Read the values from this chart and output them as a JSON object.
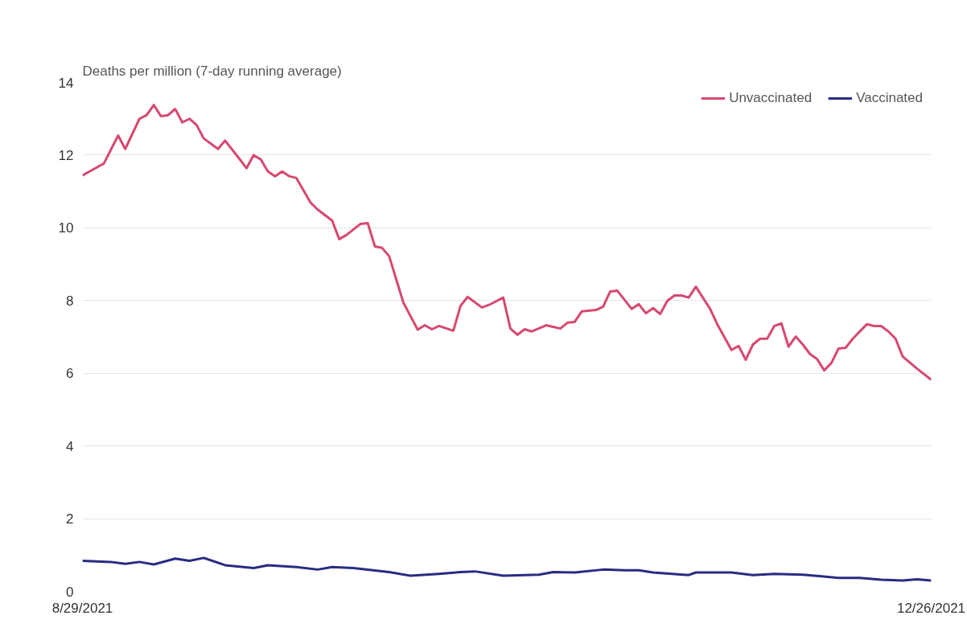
{
  "chart_data": {
    "type": "line",
    "title": "Deaths per million (7-day running average)",
    "xlim": [
      "2021-08-29",
      "2021-12-26"
    ],
    "xticks": [
      {
        "value": "2021-08-29",
        "label": "8/29/2021"
      },
      {
        "value": "2021-12-26",
        "label": "12/26/2021"
      }
    ],
    "ylim": [
      0,
      14
    ],
    "yticks": [
      0,
      2,
      4,
      6,
      8,
      10,
      12,
      14
    ],
    "grid": "y",
    "legend": "top right",
    "marker": "none",
    "line_style": "solid",
    "series": [
      {
        "name": "Unvaccinated",
        "color": "#d6496f",
        "x": [
          "2021-08-29",
          "2021-08-31",
          "2021-09-01",
          "2021-09-03",
          "2021-09-04",
          "2021-09-06",
          "2021-09-07",
          "2021-09-08",
          "2021-09-09",
          "2021-09-10",
          "2021-09-11",
          "2021-09-12",
          "2021-09-13",
          "2021-09-14",
          "2021-09-15",
          "2021-09-17",
          "2021-09-18",
          "2021-09-20",
          "2021-09-21",
          "2021-09-22",
          "2021-09-23",
          "2021-09-24",
          "2021-09-25",
          "2021-09-26",
          "2021-09-27",
          "2021-09-28",
          "2021-09-30",
          "2021-10-01",
          "2021-10-03",
          "2021-10-04",
          "2021-10-05",
          "2021-10-07",
          "2021-10-08",
          "2021-10-09",
          "2021-10-10",
          "2021-10-11",
          "2021-10-13",
          "2021-10-15",
          "2021-10-16",
          "2021-10-17",
          "2021-10-18",
          "2021-10-20",
          "2021-10-21",
          "2021-10-22",
          "2021-10-24",
          "2021-10-25",
          "2021-10-27",
          "2021-10-28",
          "2021-10-29",
          "2021-10-30",
          "2021-10-31",
          "2021-11-02",
          "2021-11-04",
          "2021-11-05",
          "2021-11-06",
          "2021-11-07",
          "2021-11-09",
          "2021-11-10",
          "2021-11-11",
          "2021-11-12",
          "2021-11-14",
          "2021-11-15",
          "2021-11-16",
          "2021-11-17",
          "2021-11-18",
          "2021-11-19",
          "2021-11-20",
          "2021-11-21",
          "2021-11-22",
          "2021-11-23",
          "2021-11-25",
          "2021-11-26",
          "2021-11-28",
          "2021-11-29",
          "2021-11-30",
          "2021-12-01",
          "2021-12-02",
          "2021-12-03",
          "2021-12-04",
          "2021-12-05",
          "2021-12-06",
          "2021-12-07",
          "2021-12-08",
          "2021-12-09",
          "2021-12-10",
          "2021-12-11",
          "2021-12-12",
          "2021-12-13",
          "2021-12-14",
          "2021-12-15",
          "2021-12-17",
          "2021-12-18",
          "2021-12-19",
          "2021-12-20",
          "2021-12-21",
          "2021-12-22",
          "2021-12-24",
          "2021-12-26"
        ],
        "values": [
          11.44,
          11.66,
          11.77,
          12.54,
          12.17,
          13.0,
          13.1,
          13.38,
          13.07,
          13.1,
          13.27,
          12.9,
          13.0,
          12.83,
          12.46,
          12.17,
          12.4,
          11.9,
          11.64,
          12.0,
          11.88,
          11.55,
          11.42,
          11.55,
          11.42,
          11.37,
          10.69,
          10.5,
          10.2,
          9.69,
          9.8,
          10.11,
          10.13,
          9.49,
          9.45,
          9.22,
          7.94,
          7.2,
          7.32,
          7.21,
          7.3,
          7.17,
          7.85,
          8.1,
          7.81,
          7.88,
          8.08,
          7.23,
          7.06,
          7.21,
          7.15,
          7.32,
          7.23,
          7.39,
          7.41,
          7.7,
          7.74,
          7.83,
          8.25,
          8.27,
          7.77,
          7.9,
          7.65,
          7.79,
          7.63,
          7.99,
          8.14,
          8.14,
          8.08,
          8.38,
          7.77,
          7.35,
          6.64,
          6.75,
          6.37,
          6.79,
          6.95,
          6.95,
          7.3,
          7.37,
          6.73,
          7.01,
          6.79,
          6.53,
          6.39,
          6.08,
          6.28,
          6.68,
          6.7,
          6.95,
          7.35,
          7.3,
          7.3,
          7.15,
          6.95,
          6.46,
          6.13,
          5.82
        ]
      },
      {
        "name": "Vaccinated",
        "color": "#272c82",
        "x": [
          "2021-08-29",
          "2021-09-02",
          "2021-09-04",
          "2021-09-06",
          "2021-09-08",
          "2021-09-11",
          "2021-09-13",
          "2021-09-15",
          "2021-09-18",
          "2021-09-22",
          "2021-09-24",
          "2021-09-28",
          "2021-10-01",
          "2021-10-03",
          "2021-10-06",
          "2021-10-11",
          "2021-10-14",
          "2021-10-18",
          "2021-10-21",
          "2021-10-23",
          "2021-10-27",
          "2021-11-01",
          "2021-11-03",
          "2021-11-06",
          "2021-11-10",
          "2021-11-13",
          "2021-11-15",
          "2021-11-17",
          "2021-11-22",
          "2021-11-23",
          "2021-11-26",
          "2021-11-28",
          "2021-12-01",
          "2021-12-04",
          "2021-12-08",
          "2021-12-13",
          "2021-12-16",
          "2021-12-19",
          "2021-12-22",
          "2021-12-24",
          "2021-12-26"
        ],
        "values": [
          0.84,
          0.81,
          0.76,
          0.81,
          0.74,
          0.9,
          0.84,
          0.92,
          0.72,
          0.64,
          0.72,
          0.67,
          0.6,
          0.67,
          0.64,
          0.53,
          0.43,
          0.48,
          0.53,
          0.55,
          0.43,
          0.46,
          0.53,
          0.52,
          0.6,
          0.58,
          0.58,
          0.52,
          0.45,
          0.52,
          0.52,
          0.52,
          0.45,
          0.48,
          0.46,
          0.37,
          0.37,
          0.32,
          0.3,
          0.33,
          0.3
        ]
      }
    ]
  }
}
